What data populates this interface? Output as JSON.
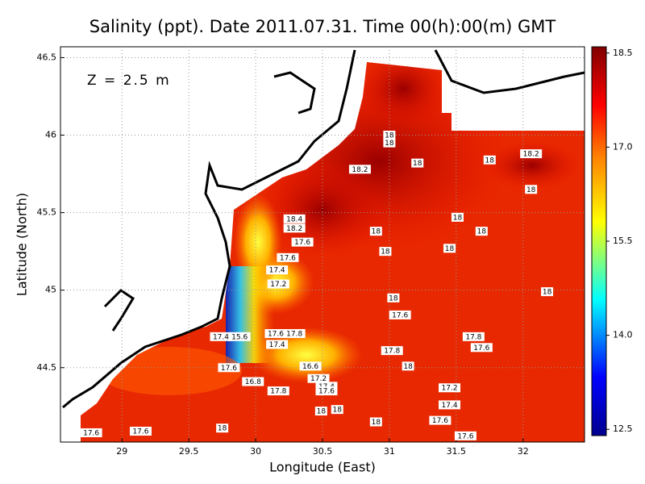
{
  "map": {
    "title": "Salinity (ppt). Date 2011.07.31. Time 00(h):00(m) GMT",
    "annotation": "Z = 2.5 m",
    "x_label": "Longitude (East)",
    "y_label": "Latitude (North)",
    "xlim": [
      28.54,
      32.46
    ],
    "ylim": [
      44.02,
      46.57
    ],
    "xticks": [
      29,
      29.5,
      30,
      30.5,
      31,
      31.5,
      32
    ],
    "yticks": [
      44.5,
      45,
      45.5,
      46,
      46.5
    ],
    "grid": true,
    "colorbar": {
      "lim": [
        12.4,
        18.6
      ],
      "ticks": [
        {
          "value": 18.5,
          "label": "18.5"
        },
        {
          "value": 17,
          "label": "17.0"
        },
        {
          "value": 15.5,
          "label": "15.5"
        },
        {
          "value": 14,
          "label": "14.0"
        },
        {
          "value": 12.5,
          "label": "12.5"
        }
      ]
    },
    "contour_labels": [
      {
        "value": 18,
        "lon": 31.0,
        "lat": 46.0
      },
      {
        "value": 18,
        "lon": 31.0,
        "lat": 45.95
      },
      {
        "value": 18.2,
        "lon": 32.06,
        "lat": 45.88
      },
      {
        "value": 18,
        "lon": 31.21,
        "lat": 45.82
      },
      {
        "value": 18.2,
        "lon": 30.78,
        "lat": 45.78
      },
      {
        "value": 18,
        "lon": 31.75,
        "lat": 45.84
      },
      {
        "value": 18,
        "lon": 32.06,
        "lat": 45.65
      },
      {
        "value": 18.4,
        "lon": 30.29,
        "lat": 45.46
      },
      {
        "value": 18.2,
        "lon": 30.29,
        "lat": 45.4
      },
      {
        "value": 18,
        "lon": 31.51,
        "lat": 45.47
      },
      {
        "value": 18,
        "lon": 30.9,
        "lat": 45.38
      },
      {
        "value": 18,
        "lon": 31.69,
        "lat": 45.38
      },
      {
        "value": 17.6,
        "lon": 30.35,
        "lat": 45.31
      },
      {
        "value": 18,
        "lon": 30.97,
        "lat": 45.25
      },
      {
        "value": 18,
        "lon": 31.45,
        "lat": 45.27
      },
      {
        "value": 17.6,
        "lon": 30.24,
        "lat": 45.21
      },
      {
        "value": 17.4,
        "lon": 30.16,
        "lat": 45.13
      },
      {
        "value": 17.2,
        "lon": 30.17,
        "lat": 45.04
      },
      {
        "value": 18,
        "lon": 32.18,
        "lat": 44.99
      },
      {
        "value": 18,
        "lon": 31.03,
        "lat": 44.95
      },
      {
        "value": 17.6,
        "lon": 31.08,
        "lat": 44.84
      },
      {
        "value": 17.8,
        "lon": 31.63,
        "lat": 44.7
      },
      {
        "value": 17.6,
        "lon": 31.69,
        "lat": 44.63
      },
      {
        "value": 17.6,
        "lon": 30.15,
        "lat": 44.72
      },
      {
        "value": 17.8,
        "lon": 30.29,
        "lat": 44.72
      },
      {
        "value": 17.4,
        "lon": 30.16,
        "lat": 44.65
      },
      {
        "value": 17.8,
        "lon": 31.02,
        "lat": 44.61
      },
      {
        "value": 16.6,
        "lon": 30.41,
        "lat": 44.51
      },
      {
        "value": 18,
        "lon": 31.14,
        "lat": 44.51
      },
      {
        "value": 17.6,
        "lon": 29.8,
        "lat": 44.5
      },
      {
        "value": 16.8,
        "lon": 29.98,
        "lat": 44.41
      },
      {
        "value": 17.2,
        "lon": 30.47,
        "lat": 44.43
      },
      {
        "value": 17.4,
        "lon": 30.53,
        "lat": 44.38
      },
      {
        "value": 17.6,
        "lon": 30.53,
        "lat": 44.35
      },
      {
        "value": 17.8,
        "lon": 30.17,
        "lat": 44.35
      },
      {
        "value": 17.2,
        "lon": 31.45,
        "lat": 44.37
      },
      {
        "value": 17.4,
        "lon": 31.45,
        "lat": 44.26
      },
      {
        "value": 18,
        "lon": 30.49,
        "lat": 44.22
      },
      {
        "value": 18,
        "lon": 30.61,
        "lat": 44.23
      },
      {
        "value": 18,
        "lon": 30.9,
        "lat": 44.15
      },
      {
        "value": 17.6,
        "lon": 31.38,
        "lat": 44.16
      },
      {
        "value": 18,
        "lon": 29.75,
        "lat": 44.11
      },
      {
        "value": 17.6,
        "lon": 28.77,
        "lat": 44.08
      },
      {
        "value": 17.6,
        "lon": 29.14,
        "lat": 44.09
      },
      {
        "value": 17.6,
        "lon": 31.57,
        "lat": 44.06
      },
      {
        "value": 17.4,
        "lon": 29.74,
        "lat": 44.7
      },
      {
        "value": 15.6,
        "lon": 29.88,
        "lat": 44.7
      }
    ]
  }
}
